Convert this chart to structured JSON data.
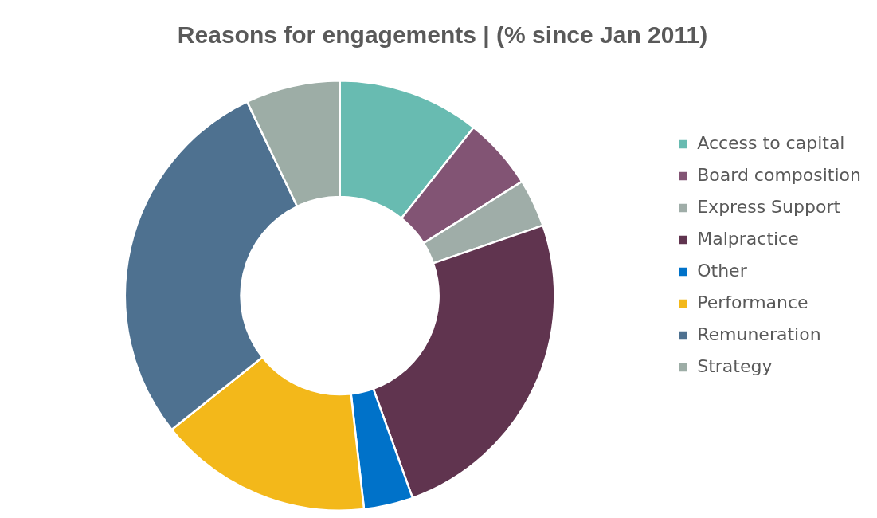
{
  "chart_data": {
    "type": "donut",
    "title": "Reasons for engagements | (% since Jan 2011)",
    "categories": [
      "Access to capital",
      "Board composition",
      "Express Support",
      "Malpractice",
      "Other",
      "Performance",
      "Remuneration",
      "Strategy"
    ],
    "values": [
      10.7,
      5.4,
      3.6,
      24.8,
      3.7,
      16.1,
      28.6,
      7.1
    ],
    "colors": [
      "#68bbb1",
      "#825474",
      "#9fada8",
      "#60344f",
      "#0072c9",
      "#f3b81a",
      "#4e7190",
      "#9dada6"
    ],
    "legend": "right"
  }
}
